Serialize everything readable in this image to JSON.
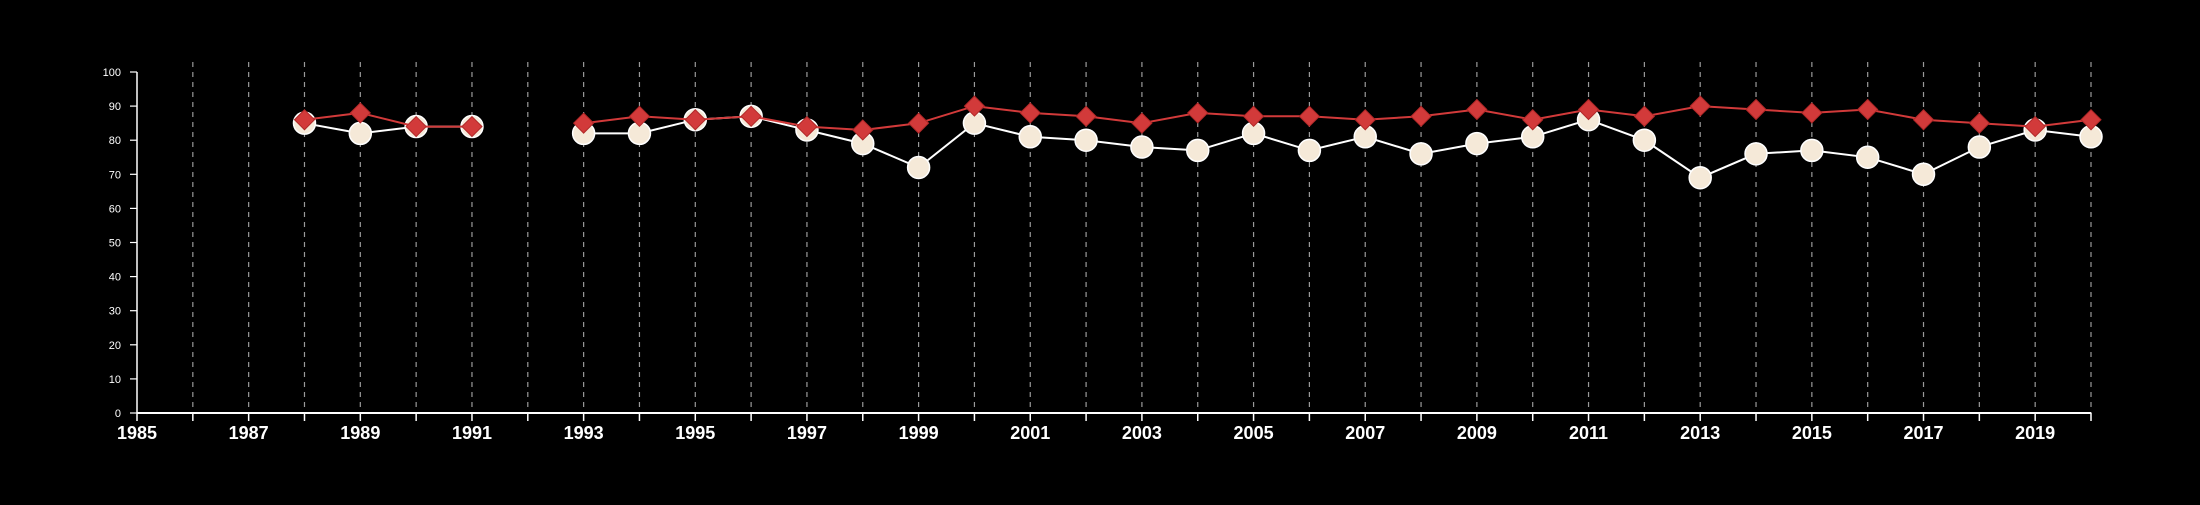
{
  "chart_data": {
    "type": "line",
    "title": "",
    "xlabel": "",
    "ylabel": "",
    "xlim": [
      1985,
      2020
    ],
    "ylim": [
      0,
      100
    ],
    "x_ticks": [
      "1985",
      "1987",
      "1989",
      "1991",
      "1993",
      "1995",
      "1997",
      "1999",
      "2001",
      "2003",
      "2005",
      "2007",
      "2009",
      "2011",
      "2013",
      "2015",
      "2017",
      "2019"
    ],
    "y_ticks": [
      "0",
      "10",
      "20",
      "30",
      "40",
      "50",
      "60",
      "70",
      "80",
      "90",
      "100"
    ],
    "grid": "vertical dashed lines at every year",
    "legend": "none",
    "series": [
      {
        "color": "#d23a3a",
        "marker": "diamond",
        "x": [
          1988,
          1989,
          1990,
          1991,
          1993,
          1994,
          1995,
          1996,
          1997,
          1998,
          1999,
          2000,
          2001,
          2002,
          2003,
          2004,
          2005,
          2006,
          2007,
          2008,
          2009,
          2010,
          2011,
          2012,
          2013,
          2014,
          2015,
          2016,
          2017,
          2018,
          2019,
          2020
        ],
        "values": [
          86,
          88,
          84,
          84,
          85,
          87,
          86,
          87,
          84,
          83,
          85,
          90,
          88,
          87,
          85,
          88,
          87,
          87,
          86,
          87,
          89,
          86,
          89,
          87,
          90,
          89,
          88,
          89,
          86,
          85,
          84,
          86
        ]
      },
      {
        "color": "#f5e9d8",
        "marker": "circle",
        "x": [
          1988,
          1989,
          1990,
          1991,
          1993,
          1994,
          1995,
          1996,
          1997,
          1998,
          1999,
          2000,
          2001,
          2002,
          2003,
          2004,
          2005,
          2006,
          2007,
          2008,
          2009,
          2010,
          2011,
          2012,
          2013,
          2014,
          2015,
          2016,
          2017,
          2018,
          2019,
          2020
        ],
        "values": [
          85,
          82,
          84,
          84,
          82,
          82,
          86,
          87,
          83,
          79,
          72,
          85,
          81,
          80,
          78,
          77,
          82,
          77,
          81,
          76,
          79,
          81,
          86,
          80,
          69,
          76,
          77,
          75,
          70,
          78,
          83,
          81
        ]
      }
    ]
  }
}
